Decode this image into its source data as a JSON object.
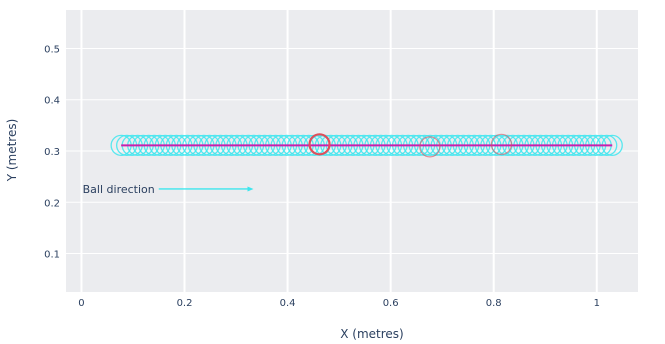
{
  "chart_data": {
    "type": "scatter",
    "title": "",
    "xlabel": "X (metres)",
    "ylabel": "Y (metres)",
    "xlim": [
      -0.03,
      1.08
    ],
    "ylim": [
      0.025,
      0.575
    ],
    "x_ticks": [
      0,
      0.2,
      0.4,
      0.6,
      0.8,
      1
    ],
    "x_tick_labels": [
      "0",
      "0.2",
      "0.4",
      "0.6",
      "0.8",
      "1"
    ],
    "y_ticks": [
      0.1,
      0.2,
      0.3,
      0.4,
      0.5
    ],
    "y_tick_labels": [
      "0.1",
      "0.2",
      "0.3",
      "0.4",
      "0.5"
    ],
    "grid": true,
    "background_color": "#ebecef",
    "series": [
      {
        "kind": "ball_positions",
        "style": "open_circles",
        "color": "#3de6ee",
        "y": 0.311,
        "x_start": 0.077,
        "x_end": 1.03,
        "count": 90
      },
      {
        "kind": "trajectory_line",
        "style": "line",
        "color": "#c81fae",
        "x": [
          0.077,
          1.03
        ],
        "y": [
          0.311,
          0.311
        ]
      },
      {
        "kind": "highlighted_positions",
        "style": "open_circles",
        "color": "#e04e5a",
        "points": [
          {
            "x": 0.462,
            "y": 0.313,
            "emphasis": "strong"
          },
          {
            "x": 0.676,
            "y": 0.308,
            "emphasis": "light"
          },
          {
            "x": 0.815,
            "y": 0.313,
            "emphasis": "light"
          }
        ]
      }
    ],
    "annotations": [
      {
        "text": "Ball direction",
        "arrow_from": [
          0.15,
          0.226
        ],
        "arrow_to": [
          0.33,
          0.226
        ],
        "color": "#3de6ee"
      }
    ]
  }
}
